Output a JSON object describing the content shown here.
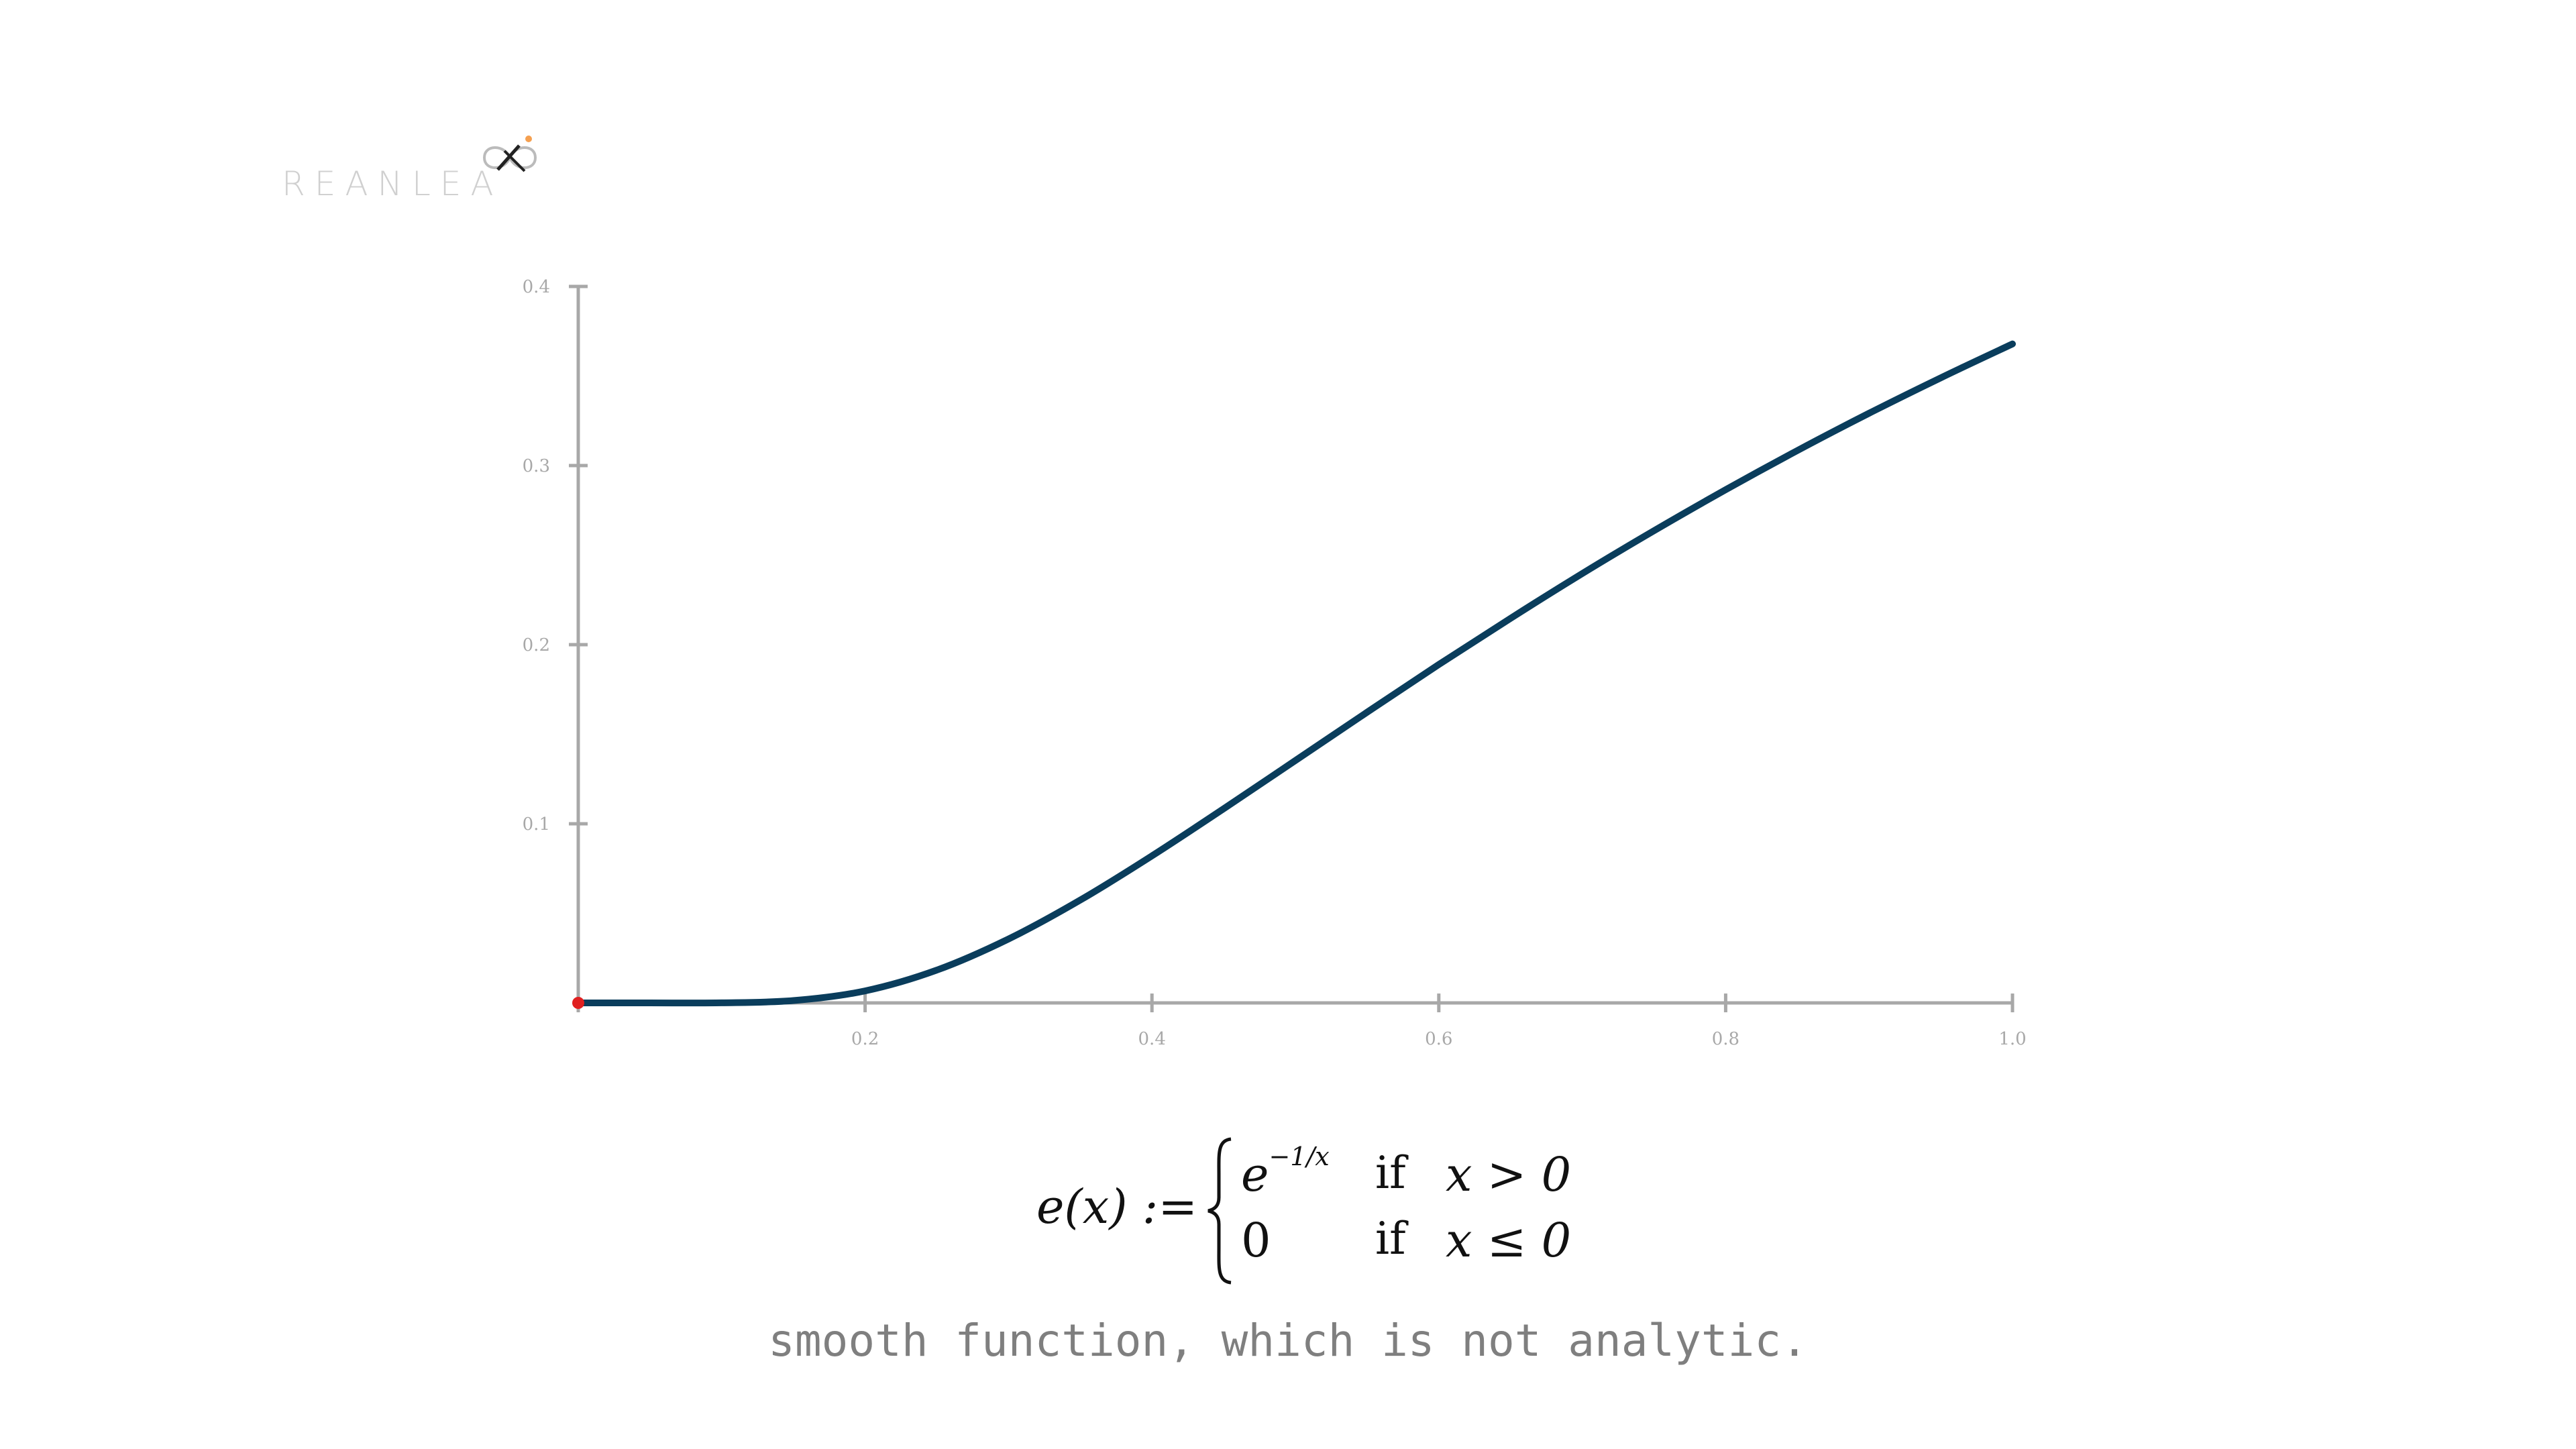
{
  "logo": {
    "text": "REANLEA"
  },
  "colors": {
    "curve": "#0a3d5c",
    "axis": "#a8a8a8",
    "origin_dot": "#e02020",
    "logo_text": "#d0d0d0",
    "logo_accent": "#f5a050",
    "caption": "#7f7f7f"
  },
  "formula": {
    "lhs": "e(x) :=",
    "case1_value": "e",
    "case1_exponent": "−1/x",
    "case1_if": "if",
    "case1_condition": "x > 0",
    "case2_value": "0",
    "case2_if": "if",
    "case2_condition": "x ≤ 0"
  },
  "caption": "smooth function, which is not analytic.",
  "chart_data": {
    "type": "line",
    "title": "",
    "xlabel": "",
    "ylabel": "",
    "xlim": [
      0,
      1.0
    ],
    "ylim": [
      0,
      0.4
    ],
    "x_ticks": [
      0.2,
      0.4,
      0.6,
      0.8,
      1.0
    ],
    "x_tick_labels": [
      "0.2",
      "0.4",
      "0.6",
      "0.8",
      "1.0"
    ],
    "y_ticks": [
      0.1,
      0.2,
      0.3,
      0.4
    ],
    "y_tick_labels": [
      "0.1",
      "0.2",
      "0.3",
      "0.4"
    ],
    "grid": false,
    "series": [
      {
        "x": [
          0,
          0.05,
          0.1,
          0.15,
          0.2,
          0.25,
          0.3,
          0.35,
          0.4,
          0.45,
          0.5,
          0.55,
          0.6,
          0.65,
          0.7,
          0.75,
          0.8,
          0.85,
          0.9,
          0.95,
          1.0
        ],
        "values": [
          0,
          0,
          5e-05,
          0.0013,
          0.0067,
          0.0183,
          0.0357,
          0.0574,
          0.0821,
          0.1084,
          0.1353,
          0.1623,
          0.1889,
          0.2147,
          0.2397,
          0.2636,
          0.2865,
          0.3084,
          0.3292,
          0.349,
          0.3679
        ]
      }
    ],
    "highlight_point": {
      "x": 0,
      "y": 0
    }
  }
}
